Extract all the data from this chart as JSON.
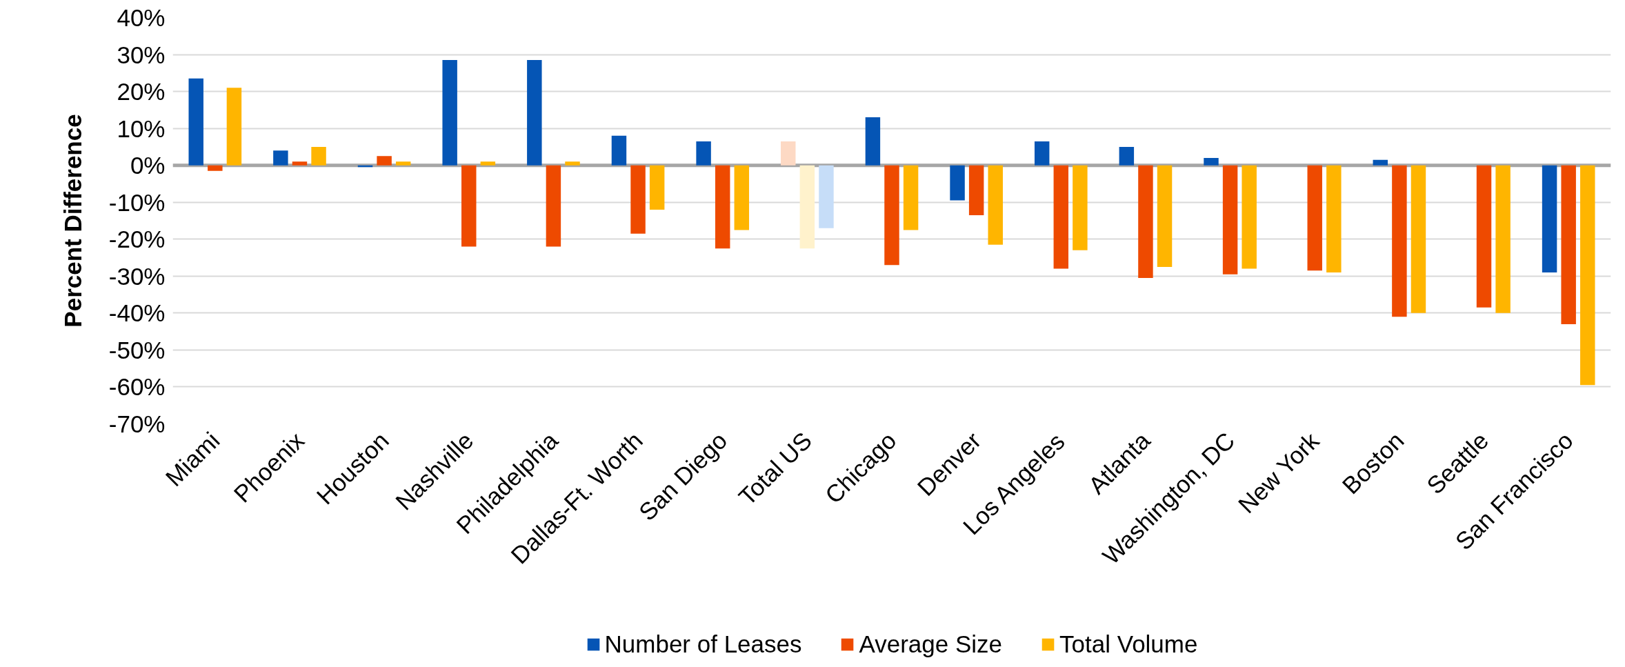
{
  "chart_data": {
    "type": "bar",
    "ylabel": "Percent Difference",
    "categories": [
      "Miami",
      "Phoenix",
      "Houston",
      "Nashville",
      "Philadelphia",
      "Dallas-Ft. Worth",
      "San Diego",
      "Total US",
      "Chicago",
      "Denver",
      "Los Angeles",
      "Atlanta",
      "Washington, DC",
      "New York",
      "Boston",
      "Seattle",
      "San Francisco"
    ],
    "series": [
      {
        "name": "Number of Leases",
        "color": "#0555b5",
        "values": [
          23.5,
          4,
          -0.5,
          28.5,
          28.5,
          8,
          6.5,
          6.5,
          13,
          -9.5,
          6.5,
          5,
          2,
          null,
          1.5,
          null,
          -29
        ],
        "colors": [
          "#0555b5",
          "#0555b5",
          "#0555b5",
          "#0555b5",
          "#0555b5",
          "#0555b5",
          "#0555b5",
          "#fdd9c4",
          "#0555b5",
          "#0555b5",
          "#0555b5",
          "#0555b5",
          "#0555b5",
          "#0555b5",
          "#0555b5",
          "#0555b5",
          "#0555b5"
        ]
      },
      {
        "name": "Average Size",
        "color": "#ee4a00",
        "values": [
          -1.5,
          1,
          2.5,
          -22,
          -22,
          -18.5,
          -22.5,
          -22.5,
          -27,
          -13.5,
          -28,
          -30.5,
          -29.5,
          -28.5,
          -41,
          -38.5,
          -43
        ],
        "colors": [
          "#ee4a00",
          "#ee4a00",
          "#ee4a00",
          "#ee4a00",
          "#ee4a00",
          "#ee4a00",
          "#ee4a00",
          "#fff2cc",
          "#ee4a00",
          "#ee4a00",
          "#ee4a00",
          "#ee4a00",
          "#ee4a00",
          "#ee4a00",
          "#ee4a00",
          "#ee4a00",
          "#ee4a00"
        ]
      },
      {
        "name": "Total Volume",
        "color": "#ffb500",
        "values": [
          21,
          5,
          1,
          1,
          1,
          -12,
          -17.5,
          -17,
          -17.5,
          -21.5,
          -23,
          -27.5,
          -28,
          -29,
          -40,
          -40,
          -59.5
        ],
        "colors": [
          "#ffb500",
          "#ffb500",
          "#ffb500",
          "#ffb500",
          "#ffb500",
          "#ffb500",
          "#ffb500",
          "#c6ddf8",
          "#ffb500",
          "#ffb500",
          "#ffb500",
          "#ffb500",
          "#ffb500",
          "#ffb500",
          "#ffb500",
          "#ffb500",
          "#ffb500"
        ]
      }
    ],
    "ylim": [
      -70,
      40
    ],
    "yticks": [
      {
        "value": -70,
        "label": "-70%"
      },
      {
        "value": -60,
        "label": "-60%"
      },
      {
        "value": -50,
        "label": "-50%"
      },
      {
        "value": -40,
        "label": "-40%"
      },
      {
        "value": -30,
        "label": "-30%"
      },
      {
        "value": -20,
        "label": "-20%"
      },
      {
        "value": -10,
        "label": "-10%"
      },
      {
        "value": 0,
        "label": "0%"
      },
      {
        "value": 10,
        "label": "10%"
      },
      {
        "value": 20,
        "label": "20%"
      },
      {
        "value": 30,
        "label": "30%"
      },
      {
        "value": 40,
        "label": "40%"
      }
    ],
    "grid": "y",
    "legend": "bottom"
  }
}
